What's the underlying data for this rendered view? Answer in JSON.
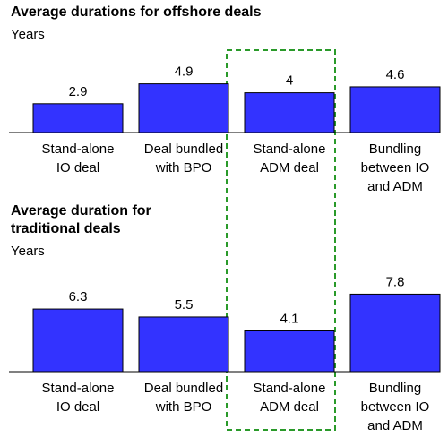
{
  "chart_data": [
    {
      "type": "bar",
      "title": [
        "Average durations for offshore deals"
      ],
      "subtitle": "Years",
      "categories": [
        [
          "Stand-alone",
          "IO deal"
        ],
        [
          "Deal bundled",
          "with BPO"
        ],
        [
          "Stand-alone",
          "ADM deal"
        ],
        [
          "Bundling",
          "between IO",
          "and ADM"
        ]
      ],
      "values": [
        2.9,
        4.9,
        4,
        4.6
      ],
      "color": "#3333ff"
    },
    {
      "type": "bar",
      "title": [
        "Average duration for",
        "traditional deals"
      ],
      "subtitle": "Years",
      "categories": [
        [
          "Stand-alone",
          "IO deal"
        ],
        [
          "Deal bundled",
          "with BPO"
        ],
        [
          "Stand-alone",
          "ADM deal"
        ],
        [
          "Bundling",
          "between IO",
          "and ADM"
        ]
      ],
      "values": [
        6.3,
        5.5,
        4.1,
        7.8
      ],
      "color": "#3333ff"
    }
  ]
}
